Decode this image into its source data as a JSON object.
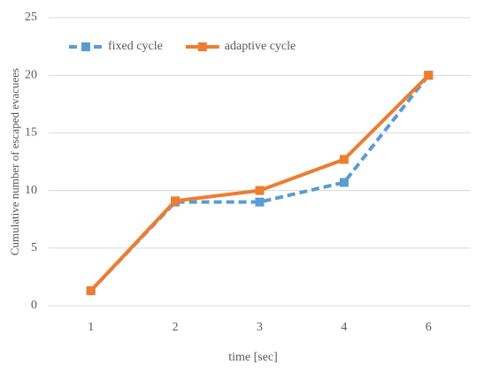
{
  "chart_data": {
    "type": "line",
    "xlabel": "time [sec]",
    "ylabel": "Cumulative number of escaped evacuees",
    "categories": [
      "1",
      "2",
      "3",
      "4",
      "6"
    ],
    "series": [
      {
        "name": "fixed cycle",
        "color": "#5b9bd5",
        "line_style": "dashed",
        "values": [
          1.3,
          9,
          9,
          10.7,
          20
        ]
      },
      {
        "name": "adaptive cycle",
        "color": "#ed7d31",
        "line_style": "solid",
        "values": [
          1.3,
          9.1,
          10,
          12.7,
          20
        ]
      }
    ],
    "ylim": [
      0,
      25
    ],
    "yticks": [
      0,
      5,
      10,
      15,
      20,
      25
    ],
    "grid": true,
    "legend": "upper left"
  }
}
